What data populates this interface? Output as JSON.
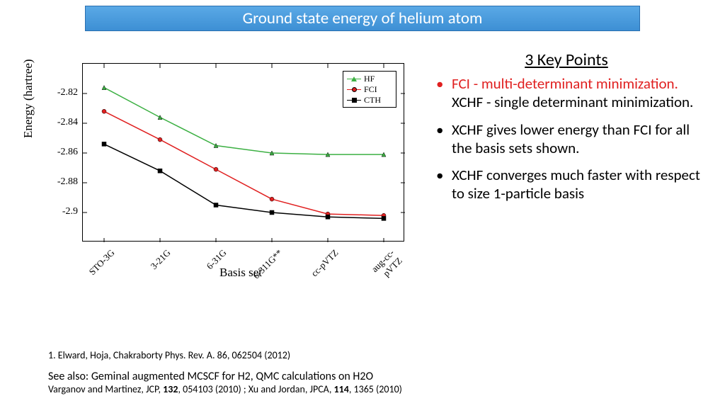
{
  "title": "Ground state energy of helium atom",
  "chart": {
    "type": "line",
    "ylabel": "Energy (hartree)",
    "xlabel": "Basis set",
    "ylim": [
      -2.92,
      -2.8
    ],
    "yticks": [
      -2.82,
      -2.84,
      -2.86,
      -2.88,
      -2.9
    ],
    "ytick_labels": [
      "-2.82",
      "-2.84",
      "-2.86",
      "-2.88",
      "-2.9"
    ],
    "xticks": [
      "STO-3G",
      "3-21G",
      "6-31G",
      "6-311G**",
      "cc-pVTZ",
      "aug-cc-pVTZ"
    ],
    "series": [
      {
        "name": "HF",
        "color": "#3cb043",
        "marker": "triangle",
        "values": [
          -2.816,
          -2.836,
          -2.855,
          -2.86,
          -2.861,
          -2.861
        ]
      },
      {
        "name": "FCI",
        "color": "#e02020",
        "marker": "circle",
        "values": [
          -2.832,
          -2.851,
          -2.871,
          -2.891,
          -2.901,
          -2.902
        ]
      },
      {
        "name": "CTH",
        "color": "#000000",
        "marker": "square",
        "values": [
          -2.854,
          -2.872,
          -2.895,
          -2.9,
          -2.903,
          -2.904
        ]
      }
    ],
    "line_width": 1.5,
    "marker_size": 6,
    "background_color": "#ffffff",
    "axis_color": "#000000",
    "label_fontsize": 17,
    "tick_fontsize": 13
  },
  "keypoints": {
    "heading": "3 Key Points",
    "items": [
      {
        "red": "FCI - multi-determinant minimization.",
        "black": "XCHF - single determinant minimization."
      },
      {
        "black": "XCHF gives lower energy than FCI for all the basis sets shown."
      },
      {
        "black": "XCHF converges much faster with respect to size 1-particle basis"
      }
    ]
  },
  "footer": {
    "ref": "1. Elward, Hoja, Chakraborty Phys. Rev. A. 86, 062504 (2012)",
    "seealso": "See also: Geminal augmented MCSCF for H2, QMC calculations on H2O",
    "seealso_sub_a": "Varganov  and Martinez, JCP, ",
    "seealso_sub_b": "132",
    "seealso_sub_c": ", 054103 (2010) ; Xu and Jordan, JPCA, ",
    "seealso_sub_d": "114",
    "seealso_sub_e": ", 1365 (2010)"
  }
}
